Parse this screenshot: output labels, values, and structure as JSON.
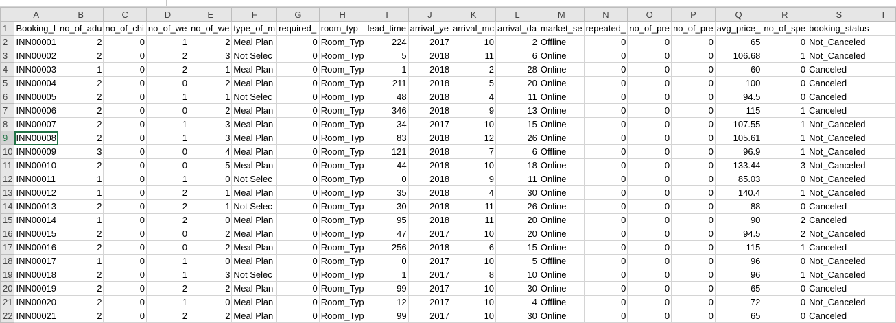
{
  "columns": [
    "A",
    "B",
    "C",
    "D",
    "E",
    "F",
    "G",
    "H",
    "I",
    "J",
    "K",
    "L",
    "M",
    "N",
    "O",
    "P",
    "Q",
    "R",
    "S",
    "T"
  ],
  "header_row_number": "1",
  "headers": [
    "Booking_I",
    "no_of_adu",
    "no_of_chi",
    "no_of_we",
    "no_of_we",
    "type_of_m",
    "required_",
    "room_typ",
    "lead_time",
    "arrival_ye",
    "arrival_mc",
    "arrival_da",
    "market_se",
    "repeated_",
    "no_of_pre",
    "no_of_pre",
    "avg_price_",
    "no_of_spe",
    "booking_status",
    ""
  ],
  "rows": [
    [
      "2",
      "INN00001",
      "2",
      "0",
      "1",
      "2",
      "Meal Plan",
      "0",
      "Room_Typ",
      "224",
      "2017",
      "10",
      "2",
      "Offline",
      "0",
      "0",
      "0",
      "65",
      "0",
      "Not_Canceled",
      ""
    ],
    [
      "3",
      "INN00002",
      "2",
      "0",
      "2",
      "3",
      "Not Selec",
      "0",
      "Room_Typ",
      "5",
      "2018",
      "11",
      "6",
      "Online",
      "0",
      "0",
      "0",
      "106.68",
      "1",
      "Not_Canceled",
      ""
    ],
    [
      "4",
      "INN00003",
      "1",
      "0",
      "2",
      "1",
      "Meal Plan",
      "0",
      "Room_Typ",
      "1",
      "2018",
      "2",
      "28",
      "Online",
      "0",
      "0",
      "0",
      "60",
      "0",
      "Canceled",
      ""
    ],
    [
      "5",
      "INN00004",
      "2",
      "0",
      "0",
      "2",
      "Meal Plan",
      "0",
      "Room_Typ",
      "211",
      "2018",
      "5",
      "20",
      "Online",
      "0",
      "0",
      "0",
      "100",
      "0",
      "Canceled",
      ""
    ],
    [
      "6",
      "INN00005",
      "2",
      "0",
      "1",
      "1",
      "Not Selec",
      "0",
      "Room_Typ",
      "48",
      "2018",
      "4",
      "11",
      "Online",
      "0",
      "0",
      "0",
      "94.5",
      "0",
      "Canceled",
      ""
    ],
    [
      "7",
      "INN00006",
      "2",
      "0",
      "0",
      "2",
      "Meal Plan",
      "0",
      "Room_Typ",
      "346",
      "2018",
      "9",
      "13",
      "Online",
      "0",
      "0",
      "0",
      "115",
      "1",
      "Canceled",
      ""
    ],
    [
      "8",
      "INN00007",
      "2",
      "0",
      "1",
      "3",
      "Meal Plan",
      "0",
      "Room_Typ",
      "34",
      "2017",
      "10",
      "15",
      "Online",
      "0",
      "0",
      "0",
      "107.55",
      "1",
      "Not_Canceled",
      ""
    ],
    [
      "9",
      "INN00008",
      "2",
      "0",
      "1",
      "3",
      "Meal Plan",
      "0",
      "Room_Typ",
      "83",
      "2018",
      "12",
      "26",
      "Online",
      "0",
      "0",
      "0",
      "105.61",
      "1",
      "Not_Canceled",
      ""
    ],
    [
      "10",
      "INN00009",
      "3",
      "0",
      "0",
      "4",
      "Meal Plan",
      "0",
      "Room_Typ",
      "121",
      "2018",
      "7",
      "6",
      "Offline",
      "0",
      "0",
      "0",
      "96.9",
      "1",
      "Not_Canceled",
      ""
    ],
    [
      "11",
      "INN00010",
      "2",
      "0",
      "0",
      "5",
      "Meal Plan",
      "0",
      "Room_Typ",
      "44",
      "2018",
      "10",
      "18",
      "Online",
      "0",
      "0",
      "0",
      "133.44",
      "3",
      "Not_Canceled",
      ""
    ],
    [
      "12",
      "INN00011",
      "1",
      "0",
      "1",
      "0",
      "Not Selec",
      "0",
      "Room_Typ",
      "0",
      "2018",
      "9",
      "11",
      "Online",
      "0",
      "0",
      "0",
      "85.03",
      "0",
      "Not_Canceled",
      ""
    ],
    [
      "13",
      "INN00012",
      "1",
      "0",
      "2",
      "1",
      "Meal Plan",
      "0",
      "Room_Typ",
      "35",
      "2018",
      "4",
      "30",
      "Online",
      "0",
      "0",
      "0",
      "140.4",
      "1",
      "Not_Canceled",
      ""
    ],
    [
      "14",
      "INN00013",
      "2",
      "0",
      "2",
      "1",
      "Not Selec",
      "0",
      "Room_Typ",
      "30",
      "2018",
      "11",
      "26",
      "Online",
      "0",
      "0",
      "0",
      "88",
      "0",
      "Canceled",
      ""
    ],
    [
      "15",
      "INN00014",
      "1",
      "0",
      "2",
      "0",
      "Meal Plan",
      "0",
      "Room_Typ",
      "95",
      "2018",
      "11",
      "20",
      "Online",
      "0",
      "0",
      "0",
      "90",
      "2",
      "Canceled",
      ""
    ],
    [
      "16",
      "INN00015",
      "2",
      "0",
      "0",
      "2",
      "Meal Plan",
      "0",
      "Room_Typ",
      "47",
      "2017",
      "10",
      "20",
      "Online",
      "0",
      "0",
      "0",
      "94.5",
      "2",
      "Not_Canceled",
      ""
    ],
    [
      "17",
      "INN00016",
      "2",
      "0",
      "0",
      "2",
      "Meal Plan",
      "0",
      "Room_Typ",
      "256",
      "2018",
      "6",
      "15",
      "Online",
      "0",
      "0",
      "0",
      "115",
      "1",
      "Canceled",
      ""
    ],
    [
      "18",
      "INN00017",
      "1",
      "0",
      "1",
      "0",
      "Meal Plan",
      "0",
      "Room_Typ",
      "0",
      "2017",
      "10",
      "5",
      "Offline",
      "0",
      "0",
      "0",
      "96",
      "0",
      "Not_Canceled",
      ""
    ],
    [
      "19",
      "INN00018",
      "2",
      "0",
      "1",
      "3",
      "Not Selec",
      "0",
      "Room_Typ",
      "1",
      "2017",
      "8",
      "10",
      "Online",
      "0",
      "0",
      "0",
      "96",
      "1",
      "Not_Canceled",
      ""
    ],
    [
      "20",
      "INN00019",
      "2",
      "0",
      "2",
      "2",
      "Meal Plan",
      "0",
      "Room_Typ",
      "99",
      "2017",
      "10",
      "30",
      "Online",
      "0",
      "0",
      "0",
      "65",
      "0",
      "Canceled",
      ""
    ],
    [
      "21",
      "INN00020",
      "2",
      "0",
      "1",
      "0",
      "Meal Plan",
      "0",
      "Room_Typ",
      "12",
      "2017",
      "10",
      "4",
      "Offline",
      "0",
      "0",
      "0",
      "72",
      "0",
      "Not_Canceled",
      ""
    ],
    [
      "22",
      "INN00021",
      "2",
      "0",
      "2",
      "2",
      "Meal Plan",
      "0",
      "Room_Typ",
      "99",
      "2017",
      "10",
      "30",
      "Online",
      "0",
      "0",
      "0",
      "65",
      "0",
      "Canceled",
      ""
    ]
  ],
  "colors": {
    "header_bg": "#e6e6e6",
    "gridline": "#d4d4d4",
    "accent": "#217346"
  },
  "active_row": "9"
}
